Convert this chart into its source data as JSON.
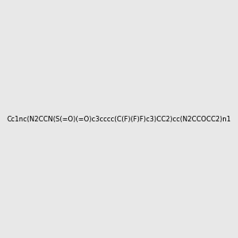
{
  "smiles": "Cc1nc(N2CCN(S(=O)(=O)c3cccc(C(F)(F)F)c3)CC2)cc(N2CCOCC2)n1",
  "image_size": 300,
  "background_color": "#e8e8e8",
  "atom_colors": {
    "N": "#0000ff",
    "O": "#ff0000",
    "S": "#cccc00",
    "F": "#ff00ff",
    "C": "#000000"
  }
}
